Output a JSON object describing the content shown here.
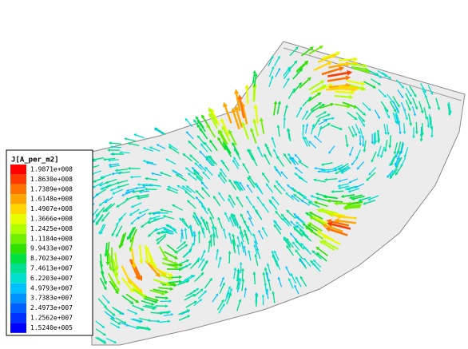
{
  "legend": {
    "title": "J[A_per_m2]",
    "labels": [
      "1.9871e+008",
      "1.8630e+008",
      "1.7389e+008",
      "1.6148e+008",
      "1.4907e+008",
      "1.3666e+008",
      "1.2425e+008",
      "1.1184e+008",
      "9.9433e+007",
      "8.7023e+007",
      "7.4613e+007",
      "6.2203e+007",
      "4.9793e+007",
      "3.7383e+007",
      "2.4973e+007",
      "1.2562e+007",
      "1.5240e+005"
    ],
    "colors": [
      "#ff0000",
      "#ff3a00",
      "#ff7200",
      "#ffa500",
      "#ffd700",
      "#e6ff00",
      "#b0ff00",
      "#70f000",
      "#30e000",
      "#00e040",
      "#00e090",
      "#00e0d0",
      "#00c0ff",
      "#0090ff",
      "#0060ff",
      "#0030ff",
      "#0000ff"
    ]
  }
}
